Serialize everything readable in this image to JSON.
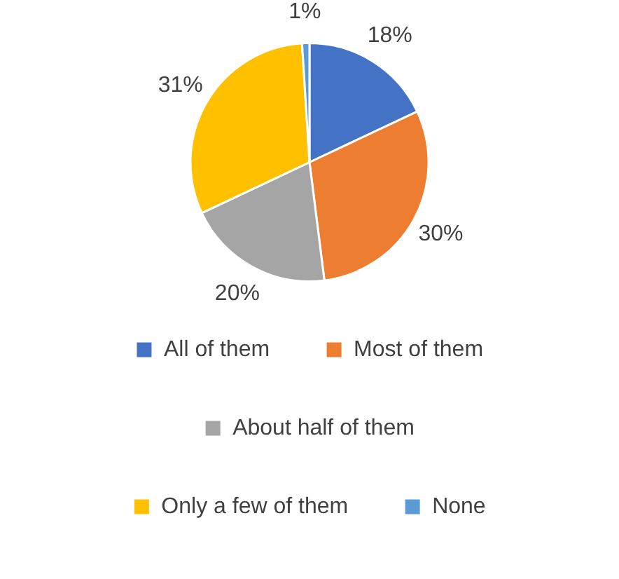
{
  "chart_data": {
    "type": "pie",
    "categories": [
      "All of them",
      "Most of them",
      "About half of them",
      "Only a few of them",
      "None"
    ],
    "values": [
      18,
      30,
      20,
      31,
      1
    ],
    "colors": [
      "#4472c4",
      "#ed7d31",
      "#a5a5a5",
      "#ffc000",
      "#5b9bd5"
    ],
    "value_labels": [
      "18%",
      "30%",
      "20%",
      "31%",
      "1%"
    ],
    "legend": "bottom"
  }
}
